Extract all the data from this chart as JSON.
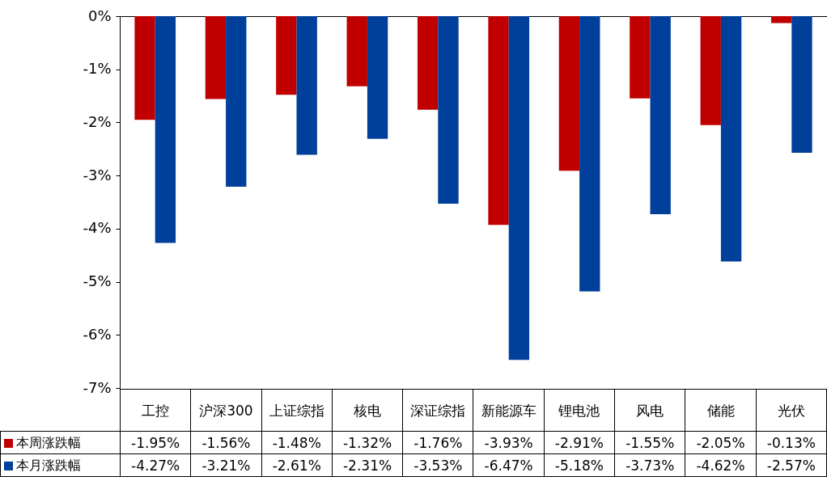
{
  "chart_data": {
    "type": "bar",
    "categories": [
      "工控",
      "沪深300",
      "上证综指",
      "核电",
      "深证综指",
      "新能源车",
      "锂电池",
      "风电",
      "储能",
      "光伏"
    ],
    "series": [
      {
        "name": "本周涨跌幅",
        "color": "#c00000",
        "values": [
          -1.95,
          -1.56,
          -1.48,
          -1.32,
          -1.76,
          -3.93,
          -2.91,
          -1.55,
          -2.05,
          -0.13
        ],
        "value_labels": [
          "-1.95%",
          "-1.56%",
          "-1.48%",
          "-1.32%",
          "-1.76%",
          "-3.93%",
          "-2.91%",
          "-1.55%",
          "-2.05%",
          "-0.13%"
        ]
      },
      {
        "name": "本月涨跌幅",
        "color": "#003f9a",
        "values": [
          -4.27,
          -3.21,
          -2.61,
          -2.31,
          -3.53,
          -6.47,
          -5.18,
          -3.73,
          -4.62,
          -2.57
        ],
        "value_labels": [
          "-4.27%",
          "-3.21%",
          "-2.61%",
          "-2.31%",
          "-3.53%",
          "-6.47%",
          "-5.18%",
          "-3.73%",
          "-4.62%",
          "-2.57%"
        ]
      }
    ],
    "ylim": [
      -7,
      0
    ],
    "yticks": [
      {
        "value": -7,
        "label": "-7%"
      },
      {
        "value": -6,
        "label": "-6%"
      },
      {
        "value": -5,
        "label": "-5%"
      },
      {
        "value": -4,
        "label": "-4%"
      },
      {
        "value": -3,
        "label": "-3%"
      },
      {
        "value": -2,
        "label": "-2%"
      },
      {
        "value": -1,
        "label": "-1%"
      },
      {
        "value": 0,
        "label": "0%"
      }
    ],
    "grid": false,
    "legend": "bottom"
  }
}
